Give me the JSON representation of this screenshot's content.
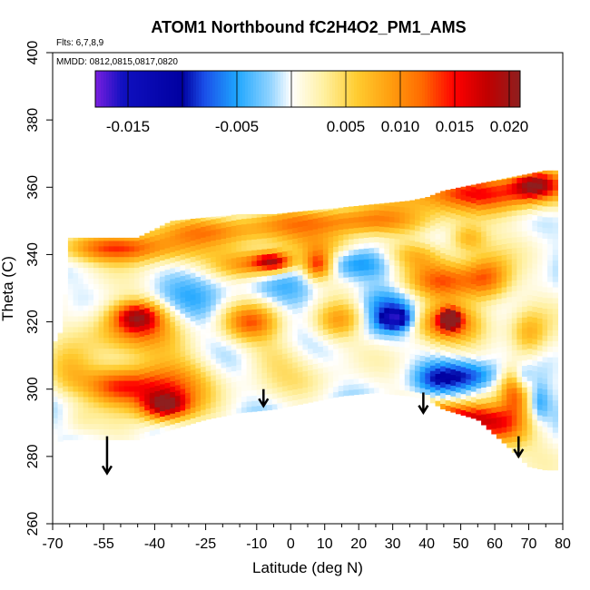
{
  "chart_data": {
    "type": "heatmap",
    "title": "ATOM1 Northbound fC2H4O2_PM1_AMS",
    "annotations": {
      "flights": "Flts: 6,7,8,9",
      "dates": "MMDD: 0812,0815,0817,0820"
    },
    "xlabel": "Latitude (deg N)",
    "ylabel": "Theta (C)",
    "xlim": [
      -70,
      80
    ],
    "ylim": [
      260,
      400
    ],
    "x_major_ticks": [
      -70,
      -55,
      -40,
      -25,
      -10,
      0,
      10,
      20,
      30,
      40,
      50,
      60,
      70,
      80
    ],
    "x_minor_ticks": [
      -65,
      -60,
      -50,
      -45,
      -35,
      -30,
      -20,
      -15,
      -5,
      5,
      15,
      25,
      35,
      45,
      55,
      65,
      75
    ],
    "x_tick_labels": [
      "-70",
      "-55",
      "-40",
      "-25",
      "-10",
      "0",
      "10",
      "20",
      "30",
      "40",
      "50",
      "60",
      "70",
      "80"
    ],
    "y_ticks": [
      260,
      280,
      300,
      320,
      340,
      360,
      380,
      400
    ],
    "y_tick_labels": [
      "260",
      "280",
      "300",
      "320",
      "340",
      "360",
      "380",
      "400"
    ],
    "colorbar": {
      "range": [
        -0.018,
        0.021
      ],
      "ticks": [
        -0.015,
        -0.005,
        0.005,
        0.01,
        0.015,
        0.02
      ],
      "tick_labels": [
        "-0.015",
        "-0.005",
        "0.005",
        "0.010",
        "0.015",
        "0.020"
      ],
      "stops": [
        {
          "v": -0.018,
          "c": "#7a1fe0"
        },
        {
          "v": -0.0155,
          "c": "#1010c0"
        },
        {
          "v": -0.01,
          "c": "#0000a0"
        },
        {
          "v": -0.008,
          "c": "#1a4ee8"
        },
        {
          "v": -0.005,
          "c": "#1ea6ff"
        },
        {
          "v": -0.002,
          "c": "#8ed2ff"
        },
        {
          "v": 0.0,
          "c": "#ffffff"
        },
        {
          "v": 0.003,
          "c": "#fff0a0"
        },
        {
          "v": 0.006,
          "c": "#ffcc30"
        },
        {
          "v": 0.009,
          "c": "#ffa010"
        },
        {
          "v": 0.012,
          "c": "#ff6a00"
        },
        {
          "v": 0.015,
          "c": "#ff0000"
        },
        {
          "v": 0.018,
          "c": "#c00000"
        },
        {
          "v": 0.021,
          "c": "#8e1f1f"
        }
      ]
    },
    "domain_bounds": [
      {
        "x": -70,
        "lo": 283,
        "hi": 313
      },
      {
        "x": -67,
        "lo": 285,
        "hi": 318
      },
      {
        "x": -65,
        "lo": 285,
        "hi": 345
      },
      {
        "x": -55,
        "lo": 285,
        "hi": 345
      },
      {
        "x": -45,
        "lo": 285,
        "hi": 345
      },
      {
        "x": -35,
        "lo": 288,
        "hi": 350
      },
      {
        "x": -25,
        "lo": 291,
        "hi": 351
      },
      {
        "x": -15,
        "lo": 293,
        "hi": 352
      },
      {
        "x": -5,
        "lo": 294,
        "hi": 352
      },
      {
        "x": 5,
        "lo": 296,
        "hi": 353
      },
      {
        "x": 15,
        "lo": 298,
        "hi": 354
      },
      {
        "x": 25,
        "lo": 299,
        "hi": 355
      },
      {
        "x": 35,
        "lo": 298,
        "hi": 356
      },
      {
        "x": 40,
        "lo": 297,
        "hi": 357
      },
      {
        "x": 45,
        "lo": 294,
        "hi": 359
      },
      {
        "x": 55,
        "lo": 291,
        "hi": 361
      },
      {
        "x": 65,
        "lo": 282,
        "hi": 363
      },
      {
        "x": 70,
        "lo": 277,
        "hi": 364
      },
      {
        "x": 75,
        "lo": 276,
        "hi": 365
      },
      {
        "x": 78,
        "lo": 276,
        "hi": 365
      }
    ],
    "field_blobs": [
      {
        "x": -50,
        "y": 342,
        "sx": 14,
        "sy": 3,
        "v": 0.013
      },
      {
        "x": -25,
        "y": 347,
        "sx": 15,
        "sy": 3,
        "v": 0.009
      },
      {
        "x": 15,
        "y": 350,
        "sx": 20,
        "sy": 3,
        "v": 0.01
      },
      {
        "x": 55,
        "y": 358,
        "sx": 18,
        "sy": 4,
        "v": 0.013
      },
      {
        "x": 72,
        "y": 361,
        "sx": 5,
        "sy": 3,
        "v": 0.016
      },
      {
        "x": 10,
        "y": 343,
        "sx": 8,
        "sy": 3,
        "v": 0.006
      },
      {
        "x": -50,
        "y": 301,
        "sx": 9,
        "sy": 4,
        "v": 0.014
      },
      {
        "x": -37,
        "y": 295,
        "sx": 5,
        "sy": 3,
        "v": 0.016
      },
      {
        "x": -35,
        "y": 302,
        "sx": 9,
        "sy": 6,
        "v": 0.009
      },
      {
        "x": -47,
        "y": 318,
        "sx": 10,
        "sy": 5,
        "v": 0.01
      },
      {
        "x": -45,
        "y": 322,
        "sx": 5,
        "sy": 3,
        "v": 0.013
      },
      {
        "x": -65,
        "y": 304,
        "sx": 5,
        "sy": 6,
        "v": 0.006
      },
      {
        "x": -12,
        "y": 320,
        "sx": 6,
        "sy": 4,
        "v": 0.011
      },
      {
        "x": -12,
        "y": 337,
        "sx": 7,
        "sy": 3,
        "v": 0.01
      },
      {
        "x": 8,
        "y": 337,
        "sx": 3,
        "sy": 3,
        "v": 0.014
      },
      {
        "x": -5,
        "y": 338,
        "sx": 4,
        "sy": 2,
        "v": 0.016
      },
      {
        "x": 15,
        "y": 320,
        "sx": 6,
        "sy": 4,
        "v": 0.011
      },
      {
        "x": 45,
        "y": 320,
        "sx": 7,
        "sy": 4,
        "v": 0.013
      },
      {
        "x": 47,
        "y": 321,
        "sx": 2,
        "sy": 2,
        "v": 0.018
      },
      {
        "x": 45,
        "y": 332,
        "sx": 8,
        "sy": 4,
        "v": 0.011
      },
      {
        "x": 58,
        "y": 333,
        "sx": 5,
        "sy": 5,
        "v": 0.011
      },
      {
        "x": 52,
        "y": 345,
        "sx": 4,
        "sy": 3,
        "v": 0.008
      },
      {
        "x": 47,
        "y": 292,
        "sx": 10,
        "sy": 3,
        "v": 0.015
      },
      {
        "x": 60,
        "y": 288,
        "sx": 7,
        "sy": 4,
        "v": 0.013
      },
      {
        "x": 66,
        "y": 300,
        "sx": 3,
        "sy": 5,
        "v": 0.011
      },
      {
        "x": 70,
        "y": 316,
        "sx": 4,
        "sy": 5,
        "v": 0.008
      },
      {
        "x": 5,
        "y": 302,
        "sx": 10,
        "sy": 4,
        "v": 0.002
      },
      {
        "x": -5,
        "y": 310,
        "sx": 6,
        "sy": 4,
        "v": 0.003
      },
      {
        "x": 28,
        "y": 323,
        "sx": 7,
        "sy": 5,
        "v": -0.007
      },
      {
        "x": 31,
        "y": 321,
        "sx": 3,
        "sy": 2,
        "v": -0.01
      },
      {
        "x": 20,
        "y": 318,
        "sx": 5,
        "sy": 3,
        "v": -0.003
      },
      {
        "x": 51,
        "y": 304,
        "sx": 7,
        "sy": 3,
        "v": -0.008
      },
      {
        "x": 42,
        "y": 303,
        "sx": 4,
        "sy": 3,
        "v": -0.004
      },
      {
        "x": -62,
        "y": 298,
        "sx": 5,
        "sy": 7,
        "v": -0.004
      },
      {
        "x": 0,
        "y": 330,
        "sx": 8,
        "sy": 5,
        "v": -0.003
      },
      {
        "x": -28,
        "y": 325,
        "sx": 9,
        "sy": 6,
        "v": -0.003
      },
      {
        "x": 20,
        "y": 337,
        "sx": 8,
        "sy": 3,
        "v": -0.004
      },
      {
        "x": 68,
        "y": 303,
        "sx": 2,
        "sy": 3,
        "v": -0.006
      },
      {
        "x": 73,
        "y": 296,
        "sx": 2,
        "sy": 4,
        "v": -0.005
      },
      {
        "x": -62,
        "y": 292,
        "sx": 4,
        "sy": 4,
        "v": 0.004
      },
      {
        "x": 36,
        "y": 340,
        "sx": 6,
        "sy": 3,
        "v": 0.006
      }
    ],
    "arrows": [
      {
        "x": -54,
        "y_top": 286,
        "y_tip": 275
      },
      {
        "x": -8,
        "y_top": 300,
        "y_tip": 295
      },
      {
        "x": 39,
        "y_top": 299,
        "y_tip": 293
      },
      {
        "x": 67,
        "y_top": 286,
        "y_tip": 280
      }
    ]
  }
}
